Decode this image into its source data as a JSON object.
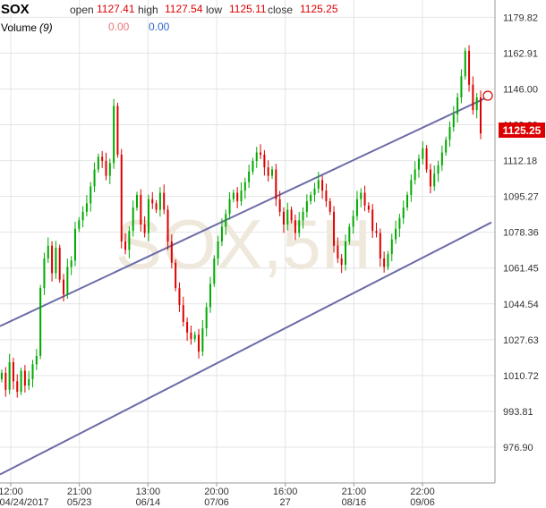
{
  "header": {
    "symbol": "SOX",
    "open_label": "open",
    "open_value": "1127.41",
    "high_label": "high",
    "high_value": "1127.54",
    "low_label": "low",
    "low_value": "1125.11",
    "close_label": "close",
    "close_value": "1125.25",
    "volume_label": "Volume",
    "volume_period": "(9)",
    "volume_value_1": "0.00",
    "volume_value_2": "0.00"
  },
  "watermark": "SOX,5H",
  "last_price_label": "1125.25",
  "colors": {
    "up": "#00aa00",
    "down": "#dd0000",
    "header_value": "#dd0000",
    "volume_blue": "#3366cc",
    "channel": "#6b6ba8",
    "grid": "#e4e4e4",
    "price_tag_bg": "#dd0000",
    "watermark": "#efe8dc"
  },
  "chart_data": {
    "type": "candlestick",
    "title": "SOX",
    "ylim": [
      960,
      1188
    ],
    "y_ticks": [
      "1179.82",
      "1162.91",
      "1146.00",
      "1129.09",
      "1112.18",
      "1095.27",
      "1078.36",
      "1061.45",
      "1044.54",
      "1027.63",
      "1010.72",
      "993.81",
      "976.90"
    ],
    "x_ticks": [
      {
        "top": "12:00",
        "bottom": "04/24/2017"
      },
      {
        "top": "21:00",
        "bottom": "05/23"
      },
      {
        "top": "13:00",
        "bottom": "06/14"
      },
      {
        "top": "20:00",
        "bottom": "07/06"
      },
      {
        "top": "16:00",
        "bottom": "27"
      },
      {
        "top": "21:00",
        "bottom": "08/16"
      },
      {
        "top": "22:00",
        "bottom": "09/06"
      }
    ],
    "channel_lines": [
      {
        "name": "upper",
        "start": 1034,
        "end": 1143
      },
      {
        "name": "lower",
        "start": 964,
        "end": 1083
      }
    ],
    "bar_count": 125,
    "last_close": 1125.25,
    "series": [
      {
        "name": "close",
        "values": [
          1012,
          1004,
          1017,
          1008,
          1003,
          1013,
          1006,
          1009,
          1016,
          1020,
          1052,
          1066,
          1072,
          1059,
          1071,
          1056,
          1049,
          1062,
          1065,
          1080,
          1084,
          1088,
          1092,
          1100,
          1108,
          1114,
          1112,
          1105,
          1111,
          1138,
          1115,
          1074,
          1070,
          1079,
          1090,
          1096,
          1082,
          1078,
          1094,
          1092,
          1089,
          1097,
          1089,
          1074,
          1064,
          1052,
          1044,
          1036,
          1031,
          1028,
          1030,
          1022,
          1033,
          1043,
          1054,
          1066,
          1074,
          1081,
          1087,
          1094,
          1097,
          1093,
          1098,
          1102,
          1107,
          1112,
          1116,
          1115,
          1109,
          1105,
          1108,
          1094,
          1088,
          1082,
          1089,
          1084,
          1078,
          1084,
          1088,
          1093,
          1096,
          1099,
          1103,
          1098,
          1093,
          1088,
          1072,
          1066,
          1063,
          1074,
          1081,
          1086,
          1094,
          1097,
          1091,
          1089,
          1079,
          1078,
          1066,
          1062,
          1068,
          1075,
          1080,
          1085,
          1090,
          1096,
          1103,
          1108,
          1113,
          1118,
          1108,
          1100,
          1106,
          1110,
          1116,
          1122,
          1128,
          1134,
          1142,
          1152,
          1164,
          1148,
          1136,
          1142,
          1125
        ]
      },
      {
        "name": "volume",
        "values": []
      }
    ]
  }
}
